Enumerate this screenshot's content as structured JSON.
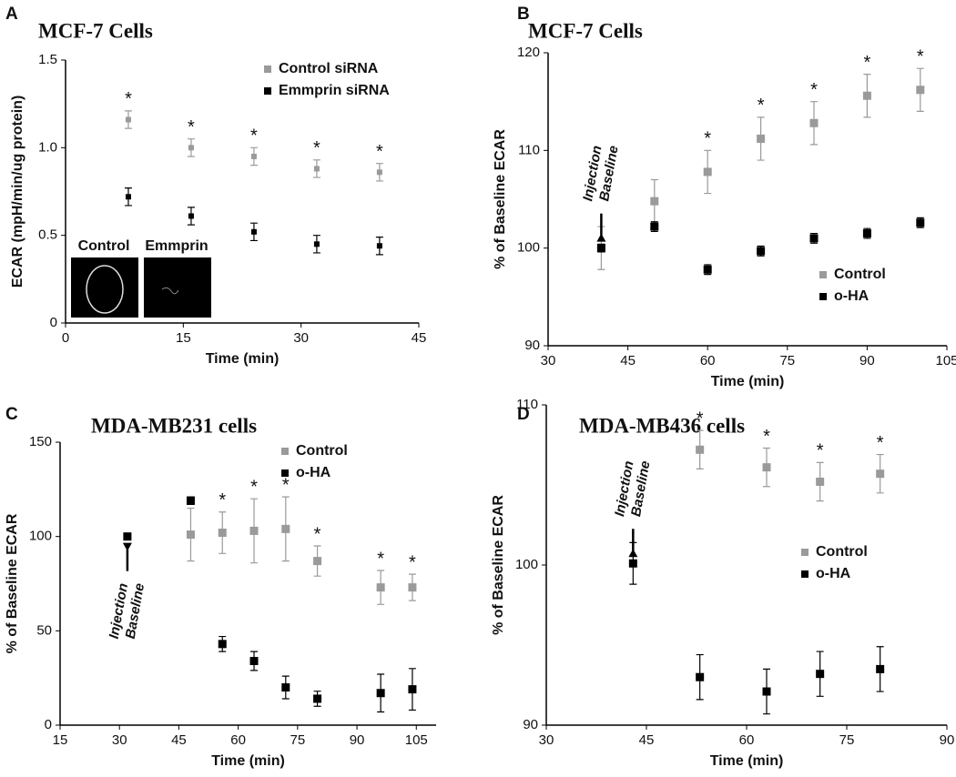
{
  "chart_data": [
    {
      "type": "scatter",
      "panel_label": "A",
      "title": "MCF-7 Cells",
      "xlabel": "Time (min)",
      "ylabel": "ECAR (mpH/min/ug protein)",
      "xlim": [
        0,
        45
      ],
      "xticks": [
        0,
        15,
        30,
        45
      ],
      "ylim": [
        0,
        1.5
      ],
      "yticks": [
        0,
        0.5,
        {
          "value": 1,
          "label": "1.0"
        },
        1.5
      ],
      "legend": "upper right",
      "inset_labels": [
        "Control",
        "Emmprin"
      ],
      "series": [
        {
          "name": "Control siRNA",
          "color": "#9a9a9a",
          "x": [
            8,
            16,
            24,
            32,
            40
          ],
          "values": [
            1.16,
            1.0,
            0.95,
            0.88,
            0.86
          ],
          "errors": [
            0.05,
            0.05,
            0.05,
            0.05,
            0.05
          ],
          "significance": [
            "*",
            "*",
            "*",
            "*",
            "*"
          ]
        },
        {
          "name": "Emmprin siRNA",
          "color": "#000000",
          "x": [
            8,
            16,
            24,
            32,
            40
          ],
          "values": [
            0.72,
            0.61,
            0.52,
            0.45,
            0.44
          ],
          "errors": [
            0.05,
            0.05,
            0.05,
            0.05,
            0.05
          ]
        }
      ]
    },
    {
      "type": "scatter",
      "panel_label": "B",
      "title": "MCF-7 Cells",
      "xlabel": "Time (min)",
      "ylabel": "% of Baseline ECAR",
      "xlim": [
        30,
        105
      ],
      "xticks": [
        30,
        45,
        60,
        75,
        90,
        105
      ],
      "ylim": [
        90,
        120
      ],
      "yticks": [
        90,
        100,
        110,
        120
      ],
      "legend": "lower right",
      "annotation": [
        "Injection",
        "Baseline"
      ],
      "series": [
        {
          "name": "Control",
          "color": "#9a9a9a",
          "x": [
            40,
            50,
            60,
            70,
            80,
            90,
            100
          ],
          "values": [
            100.0,
            104.8,
            107.8,
            111.2,
            112.8,
            115.6,
            116.2
          ],
          "errors": [
            2.2,
            2.2,
            2.2,
            2.2,
            2.2,
            2.2,
            2.2
          ],
          "significance": [
            null,
            null,
            "*",
            "*",
            "*",
            "*",
            "*"
          ]
        },
        {
          "name": "o-HA",
          "color": "#000000",
          "x": [
            40,
            50,
            60,
            70,
            80,
            90,
            100
          ],
          "values": [
            100.0,
            102.2,
            97.8,
            99.7,
            101.0,
            101.5,
            102.6
          ],
          "errors": [
            0.4,
            0.5,
            0.5,
            0.5,
            0.5,
            0.5,
            0.5
          ]
        }
      ]
    },
    {
      "type": "scatter",
      "panel_label": "C",
      "title": "MDA-MB231 cells",
      "xlabel": "Time (min)",
      "ylabel": "% of Baseline ECAR",
      "xlim": [
        15,
        110
      ],
      "xticks": [
        15,
        30,
        45,
        60,
        75,
        90,
        105
      ],
      "ylim": [
        0,
        150
      ],
      "yticks": [
        0,
        50,
        100,
        150
      ],
      "legend": "upper right",
      "annotation": [
        "Injection",
        "Baseline"
      ],
      "series": [
        {
          "name": "Control",
          "color": "#9a9a9a",
          "x": [
            48,
            56,
            64,
            72,
            80,
            96,
            104
          ],
          "values": [
            101,
            102,
            103,
            104,
            87,
            73,
            73
          ],
          "errors": [
            14,
            11,
            17,
            17,
            8,
            9,
            7
          ],
          "significance": [
            null,
            "*",
            "*",
            "*",
            "*",
            "*",
            "*"
          ]
        },
        {
          "name": "o-HA",
          "color": "#000000",
          "x": [
            32,
            48,
            56,
            64,
            72,
            80,
            96,
            104
          ],
          "values": [
            100,
            119,
            43,
            34,
            20,
            14,
            17,
            19
          ],
          "errors": [
            0,
            2,
            4,
            5,
            6,
            4,
            10,
            11
          ]
        }
      ]
    },
    {
      "type": "scatter",
      "panel_label": "D",
      "title": "MDA-MB436 cells",
      "xlabel": "Time (min)",
      "ylabel": "% of Baseline ECAR",
      "xlim": [
        30,
        90
      ],
      "xticks": [
        30,
        45,
        60,
        75,
        90
      ],
      "ylim": [
        90,
        110
      ],
      "yticks": [
        90,
        100,
        110
      ],
      "legend": "center right",
      "annotation": [
        "Injection",
        "Baseline"
      ],
      "series": [
        {
          "name": "Control",
          "color": "#9a9a9a",
          "x": [
            53,
            63,
            71,
            80
          ],
          "values": [
            107.2,
            106.1,
            105.2,
            105.7
          ],
          "errors": [
            1.2,
            1.2,
            1.2,
            1.2
          ],
          "significance": [
            "*",
            "*",
            "*",
            "*"
          ]
        },
        {
          "name": "o-HA",
          "color": "#000000",
          "x": [
            43,
            53,
            63,
            71,
            80
          ],
          "values": [
            100.1,
            93.0,
            92.1,
            93.2,
            93.5
          ],
          "errors": [
            1.3,
            1.4,
            1.4,
            1.4,
            1.4
          ]
        }
      ]
    }
  ]
}
